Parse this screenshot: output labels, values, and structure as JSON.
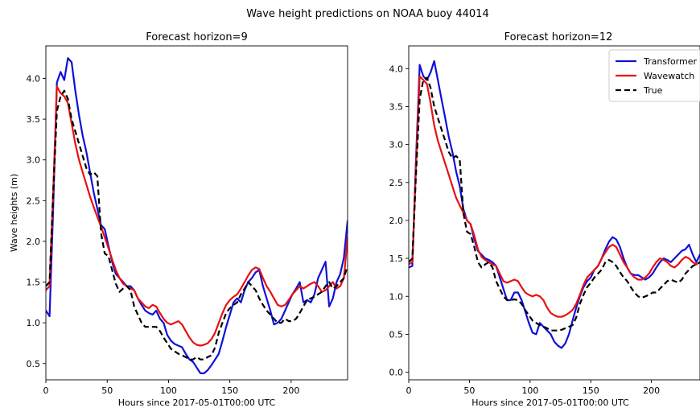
{
  "figure": {
    "suptitle": "Wave height predictions on NOAA buoy 44014"
  },
  "chart_data": [
    {
      "type": "line",
      "title": "Forecast horizon=9",
      "xlabel": "Hours since 2017-05-01T00:00 UTC",
      "ylabel": "Wave heights (m)",
      "xlim": [
        0,
        246
      ],
      "ylim": [
        0.3,
        4.4
      ],
      "xticks": [
        0,
        50,
        100,
        150,
        200
      ],
      "yticks": [
        0.5,
        1.0,
        1.5,
        2.0,
        2.5,
        3.0,
        3.5,
        4.0
      ],
      "grid": false,
      "legend": null,
      "series": [
        {
          "name": "Transformer",
          "color": "#1010d8",
          "dash": "solid",
          "x": [
            0,
            3,
            6,
            9,
            12,
            15,
            18,
            21,
            24,
            27,
            30,
            33,
            36,
            39,
            42,
            45,
            48,
            51,
            54,
            57,
            60,
            63,
            66,
            69,
            72,
            75,
            78,
            81,
            84,
            87,
            90,
            93,
            96,
            99,
            102,
            105,
            108,
            111,
            114,
            117,
            120,
            123,
            126,
            129,
            132,
            135,
            138,
            141,
            144,
            147,
            150,
            153,
            156,
            159,
            162,
            165,
            168,
            171,
            174,
            177,
            180,
            183,
            186,
            189,
            192,
            195,
            198,
            201,
            204,
            207,
            210,
            213,
            216,
            219,
            222,
            225,
            228,
            231,
            234,
            237,
            240,
            243,
            246
          ],
          "y": [
            1.15,
            1.08,
            2.4,
            3.95,
            4.08,
            3.98,
            4.25,
            4.2,
            3.85,
            3.55,
            3.3,
            3.1,
            2.85,
            2.6,
            2.4,
            2.2,
            2.15,
            1.95,
            1.75,
            1.6,
            1.55,
            1.5,
            1.45,
            1.45,
            1.4,
            1.3,
            1.22,
            1.15,
            1.12,
            1.1,
            1.15,
            1.05,
            1.0,
            0.85,
            0.78,
            0.74,
            0.72,
            0.7,
            0.62,
            0.55,
            0.52,
            0.45,
            0.38,
            0.38,
            0.42,
            0.48,
            0.55,
            0.62,
            0.78,
            0.95,
            1.1,
            1.25,
            1.3,
            1.25,
            1.4,
            1.5,
            1.55,
            1.62,
            1.65,
            1.45,
            1.3,
            1.15,
            0.98,
            1.0,
            1.05,
            1.15,
            1.25,
            1.35,
            1.42,
            1.5,
            1.25,
            1.28,
            1.25,
            1.35,
            1.55,
            1.65,
            1.75,
            1.2,
            1.3,
            1.5,
            1.6,
            1.8,
            2.25
          ]
        },
        {
          "name": "Wavewatch",
          "color": "#e81010",
          "dash": "solid",
          "x": [
            0,
            3,
            6,
            9,
            12,
            15,
            18,
            21,
            24,
            27,
            30,
            33,
            36,
            39,
            42,
            45,
            48,
            51,
            54,
            57,
            60,
            63,
            66,
            69,
            72,
            75,
            78,
            81,
            84,
            87,
            90,
            93,
            96,
            99,
            102,
            105,
            108,
            111,
            114,
            117,
            120,
            123,
            126,
            129,
            132,
            135,
            138,
            141,
            144,
            147,
            150,
            153,
            156,
            159,
            162,
            165,
            168,
            171,
            174,
            177,
            180,
            183,
            186,
            189,
            192,
            195,
            198,
            201,
            204,
            207,
            210,
            213,
            216,
            219,
            222,
            225,
            228,
            231,
            234,
            237,
            240,
            243,
            246
          ],
          "y": [
            1.4,
            1.45,
            2.6,
            3.9,
            3.82,
            3.78,
            3.7,
            3.45,
            3.2,
            3.0,
            2.85,
            2.7,
            2.55,
            2.42,
            2.3,
            2.18,
            2.05,
            1.92,
            1.78,
            1.65,
            1.55,
            1.48,
            1.45,
            1.42,
            1.4,
            1.3,
            1.25,
            1.2,
            1.18,
            1.22,
            1.2,
            1.12,
            1.05,
            1.0,
            0.98,
            1.0,
            1.02,
            0.98,
            0.9,
            0.82,
            0.76,
            0.73,
            0.72,
            0.73,
            0.75,
            0.8,
            0.88,
            1.0,
            1.12,
            1.22,
            1.28,
            1.32,
            1.35,
            1.42,
            1.5,
            1.58,
            1.65,
            1.68,
            1.66,
            1.55,
            1.45,
            1.38,
            1.3,
            1.22,
            1.2,
            1.22,
            1.28,
            1.35,
            1.4,
            1.45,
            1.42,
            1.45,
            1.48,
            1.5,
            1.45,
            1.38,
            1.4,
            1.45,
            1.5,
            1.42,
            1.45,
            1.55,
            2.05
          ]
        },
        {
          "name": "True",
          "color": "#000000",
          "dash": "dashed",
          "x": [
            0,
            3,
            6,
            9,
            12,
            15,
            18,
            21,
            24,
            27,
            30,
            33,
            36,
            39,
            42,
            45,
            48,
            51,
            54,
            57,
            60,
            63,
            66,
            69,
            72,
            75,
            78,
            81,
            84,
            87,
            90,
            93,
            96,
            99,
            102,
            105,
            108,
            111,
            114,
            117,
            120,
            123,
            126,
            129,
            132,
            135,
            138,
            141,
            144,
            147,
            150,
            153,
            156,
            159,
            162,
            165,
            168,
            171,
            174,
            177,
            180,
            183,
            186,
            189,
            192,
            195,
            198,
            201,
            204,
            207,
            210,
            213,
            216,
            219,
            222,
            225,
            228,
            231,
            234,
            237,
            240,
            243,
            246
          ],
          "y": [
            1.45,
            1.5,
            2.6,
            3.6,
            3.78,
            3.85,
            3.75,
            3.5,
            3.35,
            3.2,
            3.05,
            2.9,
            2.82,
            2.85,
            2.8,
            2.1,
            1.85,
            1.82,
            1.65,
            1.48,
            1.38,
            1.42,
            1.45,
            1.4,
            1.2,
            1.1,
            1.0,
            0.95,
            0.95,
            0.95,
            0.95,
            0.9,
            0.82,
            0.75,
            0.68,
            0.65,
            0.62,
            0.6,
            0.58,
            0.55,
            0.55,
            0.58,
            0.55,
            0.55,
            0.58,
            0.6,
            0.7,
            0.88,
            1.0,
            1.12,
            1.18,
            1.22,
            1.25,
            1.35,
            1.42,
            1.5,
            1.45,
            1.4,
            1.3,
            1.22,
            1.15,
            1.1,
            1.05,
            1.0,
            1.0,
            1.05,
            1.02,
            1.02,
            1.05,
            1.12,
            1.2,
            1.28,
            1.3,
            1.32,
            1.35,
            1.38,
            1.45,
            1.5,
            1.42,
            1.45,
            1.5,
            1.55,
            1.7
          ]
        }
      ]
    },
    {
      "type": "line",
      "title": "Forecast horizon=12",
      "xlabel": "Hours since 2017-05-01T00:00 UTC",
      "ylabel": "",
      "xlim": [
        0,
        240
      ],
      "ylim": [
        -0.1,
        4.3
      ],
      "xticks": [
        0,
        50,
        100,
        150,
        200
      ],
      "yticks": [
        0.0,
        0.5,
        1.0,
        1.5,
        2.0,
        2.5,
        3.0,
        3.5,
        4.0
      ],
      "grid": false,
      "legend": "top-right",
      "series": [
        {
          "name": "Transformer",
          "color": "#1010d8",
          "dash": "solid",
          "x": [
            0,
            3,
            6,
            9,
            12,
            15,
            18,
            21,
            24,
            27,
            30,
            33,
            36,
            39,
            42,
            45,
            48,
            51,
            54,
            57,
            60,
            63,
            66,
            69,
            72,
            75,
            78,
            81,
            84,
            87,
            90,
            93,
            96,
            99,
            102,
            105,
            108,
            111,
            114,
            117,
            120,
            123,
            126,
            129,
            132,
            135,
            138,
            141,
            144,
            147,
            150,
            153,
            156,
            159,
            162,
            165,
            168,
            171,
            174,
            177,
            180,
            183,
            186,
            189,
            192,
            195,
            198,
            201,
            204,
            207,
            210,
            213,
            216,
            219,
            222,
            225,
            228,
            231,
            234,
            237,
            240
          ],
          "y": [
            1.38,
            1.4,
            2.8,
            4.05,
            3.9,
            3.85,
            3.95,
            4.1,
            3.85,
            3.6,
            3.35,
            3.1,
            2.9,
            2.65,
            2.45,
            2.15,
            2.0,
            1.95,
            1.75,
            1.6,
            1.55,
            1.5,
            1.48,
            1.45,
            1.4,
            1.25,
            1.1,
            0.95,
            0.95,
            1.05,
            1.05,
            0.95,
            0.8,
            0.65,
            0.52,
            0.5,
            0.65,
            0.6,
            0.55,
            0.5,
            0.4,
            0.35,
            0.32,
            0.38,
            0.5,
            0.68,
            0.85,
            1.0,
            1.12,
            1.2,
            1.25,
            1.35,
            1.4,
            1.5,
            1.62,
            1.72,
            1.78,
            1.75,
            1.65,
            1.5,
            1.38,
            1.3,
            1.28,
            1.28,
            1.25,
            1.22,
            1.25,
            1.3,
            1.38,
            1.45,
            1.5,
            1.48,
            1.45,
            1.5,
            1.55,
            1.6,
            1.62,
            1.68,
            1.55,
            1.45,
            1.55
          ]
        },
        {
          "name": "Wavewatch",
          "color": "#e81010",
          "dash": "solid",
          "x": [
            0,
            3,
            6,
            9,
            12,
            15,
            18,
            21,
            24,
            27,
            30,
            33,
            36,
            39,
            42,
            45,
            48,
            51,
            54,
            57,
            60,
            63,
            66,
            69,
            72,
            75,
            78,
            81,
            84,
            87,
            90,
            93,
            96,
            99,
            102,
            105,
            108,
            111,
            114,
            117,
            120,
            123,
            126,
            129,
            132,
            135,
            138,
            141,
            144,
            147,
            150,
            153,
            156,
            159,
            162,
            165,
            168,
            171,
            174,
            177,
            180,
            183,
            186,
            189,
            192,
            195,
            198,
            201,
            204,
            207,
            210,
            213,
            216,
            219,
            222,
            225,
            228,
            231,
            234,
            237,
            240
          ],
          "y": [
            1.42,
            1.45,
            2.7,
            3.9,
            3.85,
            3.8,
            3.55,
            3.25,
            3.05,
            2.9,
            2.75,
            2.6,
            2.45,
            2.3,
            2.2,
            2.1,
            2.0,
            1.95,
            1.8,
            1.62,
            1.52,
            1.48,
            1.45,
            1.42,
            1.4,
            1.3,
            1.2,
            1.18,
            1.2,
            1.22,
            1.2,
            1.12,
            1.05,
            1.02,
            1.0,
            1.02,
            1.0,
            0.95,
            0.85,
            0.78,
            0.75,
            0.73,
            0.73,
            0.75,
            0.78,
            0.82,
            0.9,
            1.02,
            1.15,
            1.25,
            1.3,
            1.35,
            1.4,
            1.5,
            1.58,
            1.65,
            1.68,
            1.65,
            1.55,
            1.45,
            1.38,
            1.3,
            1.25,
            1.22,
            1.22,
            1.25,
            1.3,
            1.38,
            1.45,
            1.5,
            1.48,
            1.45,
            1.4,
            1.38,
            1.42,
            1.48,
            1.52,
            1.5,
            1.45,
            1.42,
            1.45
          ]
        },
        {
          "name": "True",
          "color": "#000000",
          "dash": "dashed",
          "x": [
            0,
            3,
            6,
            9,
            12,
            15,
            18,
            21,
            24,
            27,
            30,
            33,
            36,
            39,
            42,
            45,
            48,
            51,
            54,
            57,
            60,
            63,
            66,
            69,
            72,
            75,
            78,
            81,
            84,
            87,
            90,
            93,
            96,
            99,
            102,
            105,
            108,
            111,
            114,
            117,
            120,
            123,
            126,
            129,
            132,
            135,
            138,
            141,
            144,
            147,
            150,
            153,
            156,
            159,
            162,
            165,
            168,
            171,
            174,
            177,
            180,
            183,
            186,
            189,
            192,
            195,
            198,
            201,
            204,
            207,
            210,
            213,
            216,
            219,
            222,
            225,
            228,
            231,
            234,
            237,
            240
          ],
          "y": [
            1.45,
            1.5,
            2.6,
            3.6,
            3.85,
            3.88,
            3.75,
            3.5,
            3.35,
            3.2,
            3.05,
            2.9,
            2.82,
            2.85,
            2.8,
            2.1,
            1.85,
            1.82,
            1.65,
            1.45,
            1.38,
            1.42,
            1.45,
            1.38,
            1.2,
            1.1,
            1.0,
            0.95,
            0.95,
            0.96,
            0.95,
            0.9,
            0.82,
            0.75,
            0.68,
            0.65,
            0.62,
            0.6,
            0.58,
            0.55,
            0.55,
            0.55,
            0.56,
            0.58,
            0.6,
            0.62,
            0.72,
            0.9,
            1.02,
            1.12,
            1.18,
            1.25,
            1.3,
            1.35,
            1.45,
            1.48,
            1.45,
            1.4,
            1.32,
            1.25,
            1.2,
            1.12,
            1.05,
            1.0,
            0.98,
            1.0,
            1.02,
            1.05,
            1.05,
            1.1,
            1.15,
            1.2,
            1.22,
            1.2,
            1.18,
            1.22,
            1.3,
            1.35,
            1.4,
            1.42,
            1.45
          ]
        }
      ]
    }
  ]
}
